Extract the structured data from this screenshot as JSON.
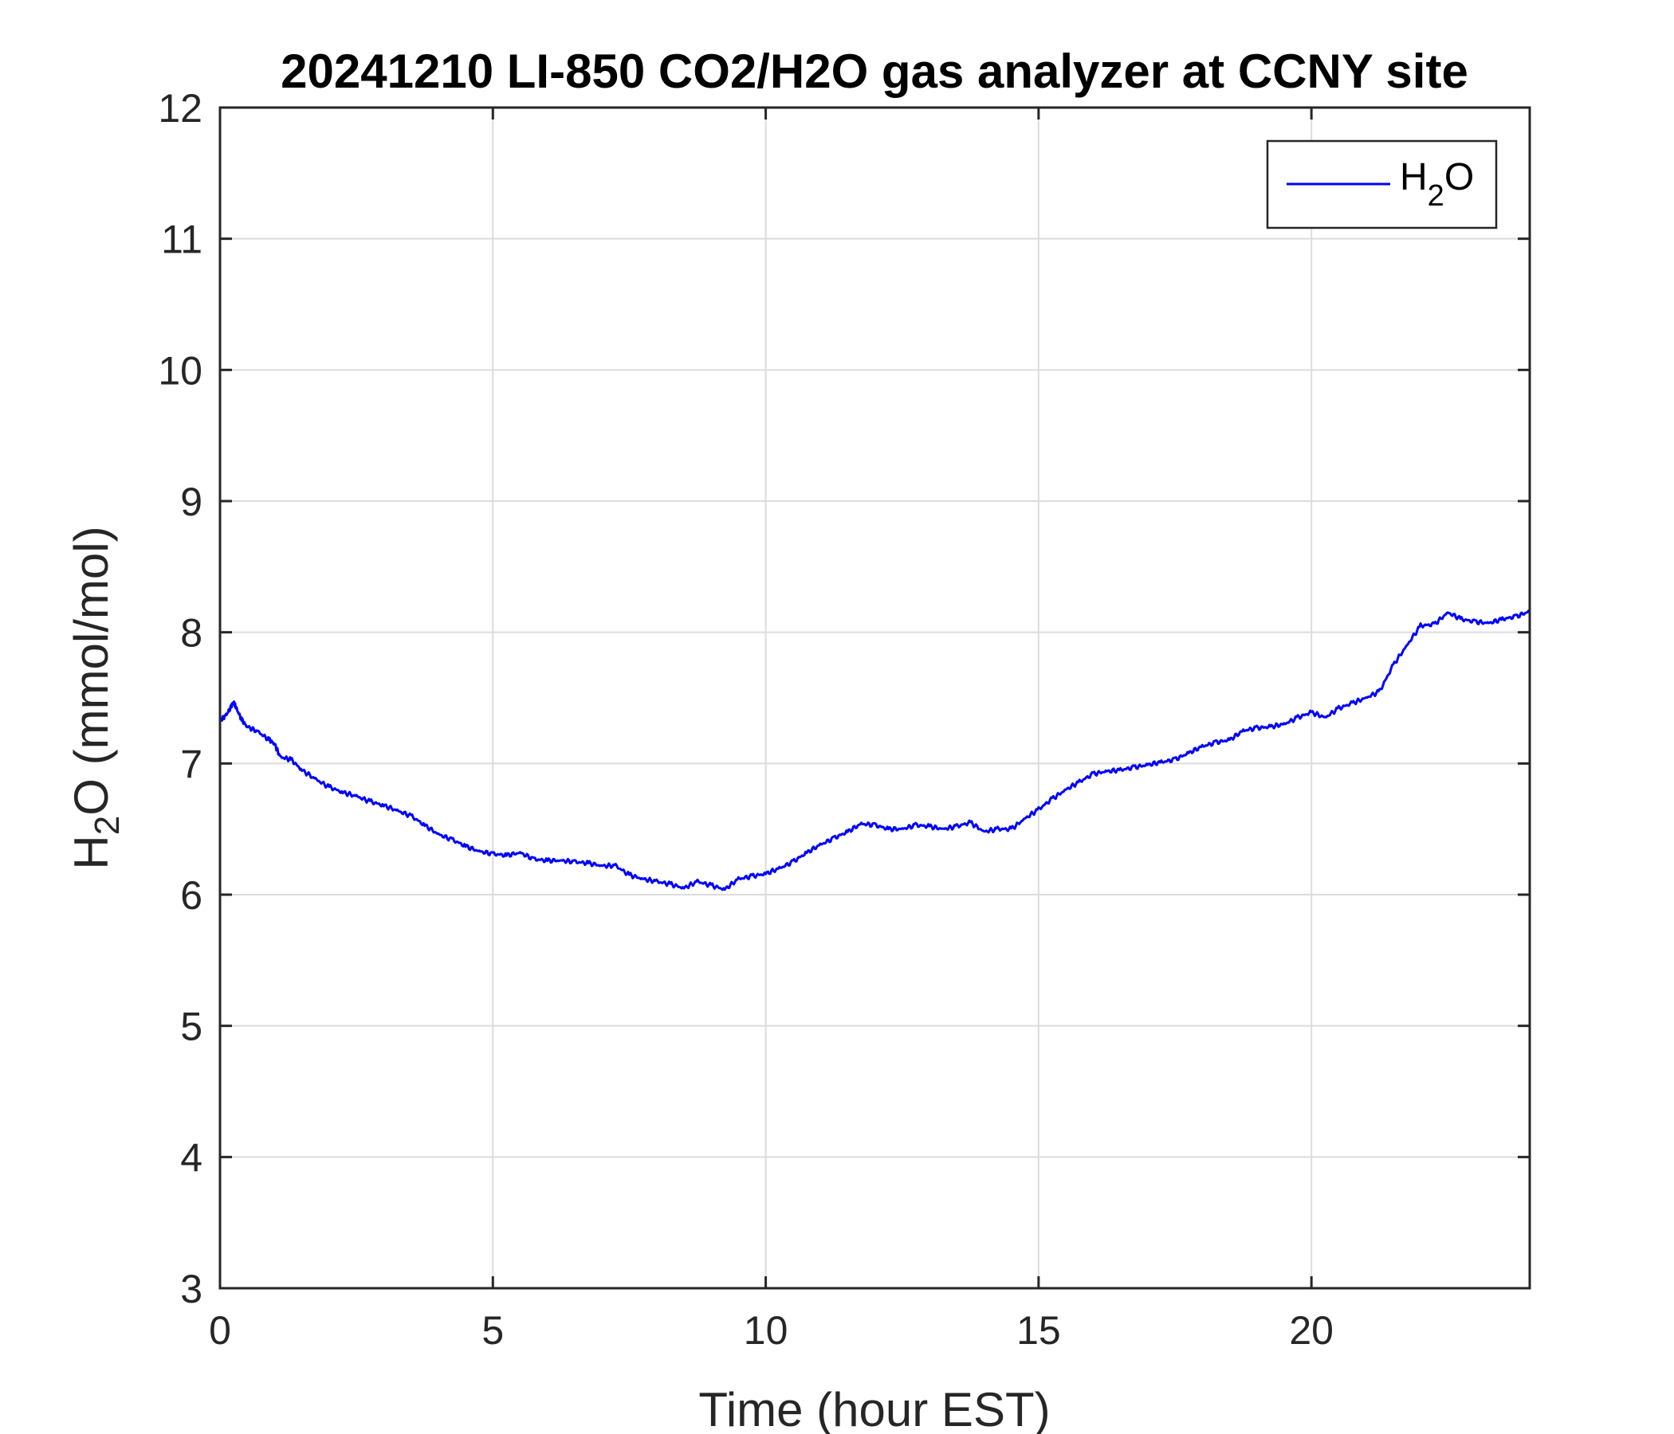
{
  "chart_data": {
    "type": "line",
    "title": "20241210 LI-850 CO2/H2O gas analyzer at CCNY site",
    "xlabel": "Time (hour EST)",
    "ylabel": {
      "main": "H",
      "sub": "2",
      "rest": "O (mmol/mol)"
    },
    "xlim": [
      0,
      24
    ],
    "ylim": [
      3,
      12
    ],
    "xticks": [
      0,
      5,
      10,
      15,
      20
    ],
    "yticks": [
      3,
      4,
      5,
      6,
      7,
      8,
      9,
      10,
      11,
      12
    ],
    "grid": true,
    "legend_position": "top-right",
    "series": [
      {
        "name": {
          "main": "H",
          "sub": "2",
          "rest": "O"
        },
        "color": "#0000ff",
        "x": [
          0,
          0.1,
          0.2,
          0.25,
          0.3,
          0.4,
          0.5,
          0.7,
          0.9,
          1.0,
          1.1,
          1.3,
          1.5,
          1.75,
          2,
          2.25,
          2.5,
          2.75,
          3,
          3.25,
          3.5,
          3.75,
          4,
          4.25,
          4.5,
          4.75,
          5,
          5.25,
          5.5,
          5.75,
          6,
          6.25,
          6.5,
          6.75,
          7,
          7.25,
          7.5,
          7.75,
          8,
          8.25,
          8.5,
          8.75,
          9,
          9.25,
          9.5,
          9.75,
          10,
          10.25,
          10.5,
          10.75,
          11,
          11.25,
          11.5,
          11.75,
          12,
          12.25,
          12.5,
          12.75,
          13,
          13.25,
          13.5,
          13.75,
          14,
          14.25,
          14.5,
          14.75,
          15,
          15.25,
          15.5,
          15.75,
          16,
          16.25,
          16.5,
          16.75,
          17,
          17.25,
          17.5,
          17.75,
          18,
          18.25,
          18.5,
          18.75,
          19,
          19.25,
          19.5,
          19.75,
          20,
          20.25,
          20.5,
          20.75,
          21,
          21.25,
          21.5,
          21.75,
          22,
          22.25,
          22.5,
          22.75,
          23,
          23.25,
          23.5,
          23.75,
          24
        ],
        "y": [
          7.33,
          7.36,
          7.43,
          7.47,
          7.42,
          7.33,
          7.28,
          7.24,
          7.18,
          7.15,
          7.05,
          7.03,
          6.95,
          6.88,
          6.82,
          6.78,
          6.75,
          6.71,
          6.68,
          6.64,
          6.6,
          6.53,
          6.46,
          6.42,
          6.37,
          6.33,
          6.31,
          6.3,
          6.32,
          6.27,
          6.26,
          6.26,
          6.25,
          6.24,
          6.22,
          6.22,
          6.15,
          6.12,
          6.1,
          6.08,
          6.05,
          6.1,
          6.07,
          6.04,
          6.12,
          6.14,
          6.16,
          6.2,
          6.25,
          6.32,
          6.38,
          6.43,
          6.48,
          6.54,
          6.53,
          6.5,
          6.5,
          6.53,
          6.52,
          6.5,
          6.52,
          6.55,
          6.48,
          6.5,
          6.5,
          6.58,
          6.65,
          6.73,
          6.8,
          6.86,
          6.92,
          6.94,
          6.95,
          6.97,
          6.99,
          7.01,
          7.03,
          7.08,
          7.13,
          7.16,
          7.18,
          7.25,
          7.27,
          7.28,
          7.3,
          7.35,
          7.39,
          7.35,
          7.42,
          7.46,
          7.5,
          7.55,
          7.75,
          7.9,
          8.05,
          8.06,
          8.15,
          8.1,
          8.08,
          8.07,
          8.1,
          8.12,
          8.16
        ]
      }
    ]
  }
}
